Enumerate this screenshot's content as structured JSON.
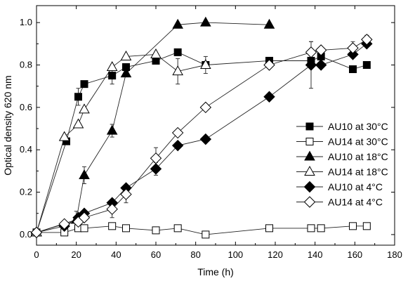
{
  "chart_data": {
    "type": "line",
    "title": "",
    "xlabel": "Time (h)",
    "ylabel": "Optical density 620 nm",
    "xlim": [
      0,
      180
    ],
    "ylim": [
      -0.05,
      1.08
    ],
    "xticks": [
      0,
      20,
      40,
      60,
      80,
      100,
      120,
      140,
      160,
      180
    ],
    "yticks": [
      0.0,
      0.2,
      0.4,
      0.6,
      0.8,
      1.0
    ],
    "xtick_labels": [
      "0",
      "20",
      "40",
      "60",
      "80",
      "100",
      "120",
      "140",
      "160",
      "180"
    ],
    "ytick_labels": [
      "0.0",
      "0.2",
      "0.4",
      "0.6",
      "0.8",
      "1.0"
    ],
    "grid": false,
    "legend_position": "right",
    "series": [
      {
        "name": "AU10 at 30°C",
        "marker": "square",
        "filled": true,
        "points": [
          [
            0,
            0.01
          ],
          [
            15,
            0.44
          ],
          [
            21,
            0.65
          ],
          [
            24,
            0.71
          ],
          [
            38,
            0.75
          ],
          [
            45,
            0.79
          ],
          [
            60,
            0.82
          ],
          [
            71,
            0.86
          ],
          [
            85,
            0.8
          ],
          [
            117,
            0.82
          ],
          [
            138,
            0.82
          ],
          [
            143,
            0.84
          ],
          [
            159,
            0.78
          ],
          [
            166,
            0.8
          ]
        ]
      },
      {
        "name": "AU14 at 30°C",
        "marker": "square",
        "filled": false,
        "points": [
          [
            0,
            0.01
          ],
          [
            14,
            0.01
          ],
          [
            21,
            0.03
          ],
          [
            24,
            0.03
          ],
          [
            38,
            0.04
          ],
          [
            45,
            0.03
          ],
          [
            60,
            0.02
          ],
          [
            71,
            0.03
          ],
          [
            85,
            0.0
          ],
          [
            117,
            0.03
          ],
          [
            138,
            0.03
          ],
          [
            143,
            0.03
          ],
          [
            159,
            0.04
          ],
          [
            166,
            0.04
          ]
        ]
      },
      {
        "name": "AU10 at 18°C",
        "marker": "triangle",
        "filled": true,
        "points": [
          [
            0,
            0.01
          ],
          [
            20,
            0.07
          ],
          [
            24,
            0.28
          ],
          [
            38,
            0.49
          ],
          [
            45,
            0.76
          ],
          [
            71,
            0.99
          ],
          [
            85,
            1.0
          ],
          [
            117,
            0.99
          ]
        ]
      },
      {
        "name": "AU14 at 18°C",
        "marker": "triangle",
        "filled": false,
        "points": [
          [
            0,
            0.01
          ],
          [
            14,
            0.46
          ],
          [
            21,
            0.52
          ],
          [
            24,
            0.59
          ],
          [
            38,
            0.79
          ],
          [
            45,
            0.84
          ],
          [
            60,
            0.85
          ],
          [
            71,
            0.77
          ],
          [
            85,
            0.8
          ]
        ]
      },
      {
        "name": "AU10 at 4°C",
        "marker": "diamond",
        "filled": true,
        "points": [
          [
            0,
            0.01
          ],
          [
            14,
            0.04
          ],
          [
            21,
            0.08
          ],
          [
            24,
            0.1
          ],
          [
            38,
            0.15
          ],
          [
            45,
            0.22
          ],
          [
            60,
            0.31
          ],
          [
            71,
            0.42
          ],
          [
            85,
            0.45
          ],
          [
            117,
            0.65
          ],
          [
            138,
            0.8
          ],
          [
            143,
            0.8
          ],
          [
            159,
            0.85
          ],
          [
            166,
            0.9
          ]
        ]
      },
      {
        "name": "AU14 at 4°C",
        "marker": "diamond",
        "filled": false,
        "points": [
          [
            0,
            0.01
          ],
          [
            14,
            0.05
          ],
          [
            21,
            0.06
          ],
          [
            24,
            0.08
          ],
          [
            38,
            0.12
          ],
          [
            45,
            0.19
          ],
          [
            60,
            0.36
          ],
          [
            71,
            0.48
          ],
          [
            85,
            0.6
          ],
          [
            117,
            0.8
          ],
          [
            138,
            0.86
          ],
          [
            143,
            0.87
          ],
          [
            159,
            0.88
          ],
          [
            166,
            0.92
          ]
        ]
      }
    ],
    "error_bars": [
      {
        "x": 21,
        "y": 0.65,
        "err": 0.04
      },
      {
        "x": 24,
        "y": 0.28,
        "err": 0.04
      },
      {
        "x": 38,
        "y": 0.75,
        "err": 0.04
      },
      {
        "x": 38,
        "y": 0.49,
        "err": 0.03
      },
      {
        "x": 38,
        "y": 0.12,
        "err": 0.04
      },
      {
        "x": 45,
        "y": 0.19,
        "err": 0.04
      },
      {
        "x": 60,
        "y": 0.36,
        "err": 0.05
      },
      {
        "x": 60,
        "y": 0.31,
        "err": 0.03
      },
      {
        "x": 71,
        "y": 0.77,
        "err": 0.06
      },
      {
        "x": 85,
        "y": 0.8,
        "err": 0.04
      },
      {
        "x": 138,
        "y": 0.8,
        "err": 0.11
      },
      {
        "x": 138,
        "y": 0.86,
        "err": 0.05
      },
      {
        "x": 143,
        "y": 0.84,
        "err": 0.03
      },
      {
        "x": 159,
        "y": 0.88,
        "err": 0.03
      },
      {
        "x": 166,
        "y": 0.92,
        "err": 0.02
      },
      {
        "x": 20,
        "y": 0.07,
        "err": 0.04
      }
    ]
  }
}
